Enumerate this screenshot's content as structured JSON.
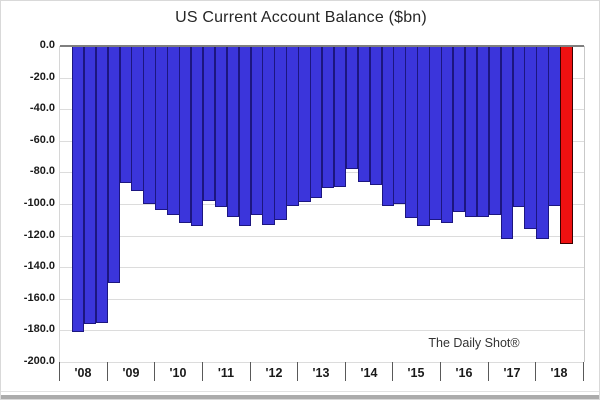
{
  "chart_data": {
    "type": "bar",
    "title": "US Current Account Balance ($bn)",
    "watermark": "The Daily Shot®",
    "ylabel": "",
    "xlabel": "",
    "ylim": [
      -200,
      0
    ],
    "grid": true,
    "legend": "none",
    "y_axis": {
      "tick_values": [
        0,
        -20,
        -40,
        -60,
        -80,
        -100,
        -120,
        -140,
        -160,
        -180,
        -200
      ],
      "tick_labels": [
        "0.0",
        "-20.0",
        "-40.0",
        "-60.0",
        "-80.0",
        "-100.0",
        "-120.0",
        "-140.0",
        "-160.0",
        "-180.0",
        "-200.0"
      ]
    },
    "x_axis": {
      "year_labels": [
        "'08",
        "'09",
        "'10",
        "'11",
        "'12",
        "'13",
        "'14",
        "'15",
        "'16",
        "'17",
        "'18"
      ],
      "slots_per_year": 4,
      "total_slots": 44,
      "first_bar_slot": 1
    },
    "categories": [
      "2008Q2",
      "2008Q3",
      "2008Q4",
      "2009Q1",
      "2009Q2",
      "2009Q3",
      "2009Q4",
      "2010Q1",
      "2010Q2",
      "2010Q3",
      "2010Q4",
      "2011Q1",
      "2011Q2",
      "2011Q3",
      "2011Q4",
      "2012Q1",
      "2012Q2",
      "2012Q3",
      "2012Q4",
      "2013Q1",
      "2013Q2",
      "2013Q3",
      "2013Q4",
      "2014Q1",
      "2014Q2",
      "2014Q3",
      "2014Q4",
      "2015Q1",
      "2015Q2",
      "2015Q3",
      "2015Q4",
      "2016Q1",
      "2016Q2",
      "2016Q3",
      "2016Q4",
      "2017Q1",
      "2017Q2",
      "2017Q3",
      "2017Q4",
      "2018Q1",
      "2018Q2",
      "2018Q3"
    ],
    "values": [
      -181,
      -176,
      -175,
      -150,
      -87,
      -92,
      -100,
      -104,
      -107,
      -112,
      -114,
      -98,
      -102,
      -108,
      -114,
      -107,
      -113,
      -110,
      -101,
      -99,
      -96,
      -90,
      -89,
      -78,
      -86,
      -88,
      -101,
      -100,
      -109,
      -114,
      -110,
      -112,
      -105,
      -108,
      -108,
      -107,
      -122,
      -102,
      -116,
      -122,
      -101,
      -125
    ],
    "highlight_last_bar": true,
    "colors": {
      "bar": "#3b35db",
      "bar_border": "#1c1680",
      "highlight": "#ee1111",
      "highlight_border": "#3a0000",
      "gridline": "#dcdcdc",
      "zero_line": "#7f7f7f",
      "text": "#1a1a1a"
    }
  }
}
